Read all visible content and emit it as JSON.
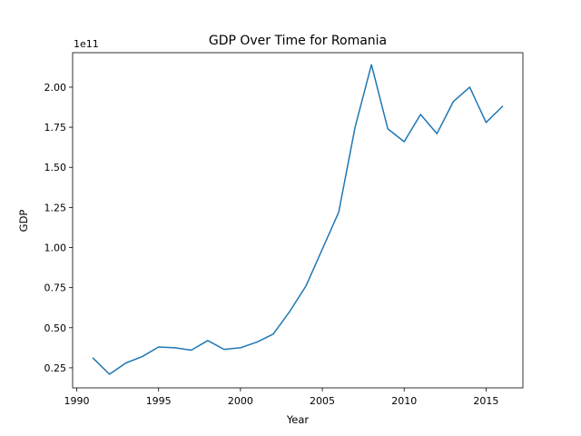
{
  "chart_data": {
    "type": "line",
    "title": "GDP Over Time for Romania",
    "xlabel": "Year",
    "ylabel": "GDP",
    "y_offset_label": "1e11",
    "xlim": [
      1989.75,
      2017.25
    ],
    "ylim": [
      0.125,
      2.215
    ],
    "y_scale_note": "values in units of 1e11",
    "xticks": [
      1990,
      1995,
      2000,
      2005,
      2010,
      2015
    ],
    "yticks": [
      0.25,
      0.5,
      0.75,
      1.0,
      1.25,
      1.5,
      1.75,
      2.0
    ],
    "ytick_labels": [
      "0.25",
      "0.50",
      "0.75",
      "1.00",
      "1.25",
      "1.50",
      "1.75",
      "2.00"
    ],
    "grid": false,
    "line_color": "#1f77b4",
    "series": [
      {
        "x": [
          1991,
          1992,
          1993,
          1994,
          1995,
          1996,
          1997,
          1998,
          1999,
          2000,
          2001,
          2002,
          2003,
          2004,
          2005,
          2006,
          2007,
          2008,
          2009,
          2010,
          2011,
          2012,
          2013,
          2014,
          2015,
          2016
        ],
        "values": [
          0.31,
          0.21,
          0.28,
          0.32,
          0.38,
          0.375,
          0.36,
          0.42,
          0.365,
          0.375,
          0.41,
          0.46,
          0.6,
          0.76,
          0.99,
          1.22,
          1.75,
          2.14,
          1.74,
          1.66,
          1.83,
          1.71,
          1.91,
          2.0,
          1.78,
          1.88
        ]
      }
    ]
  }
}
